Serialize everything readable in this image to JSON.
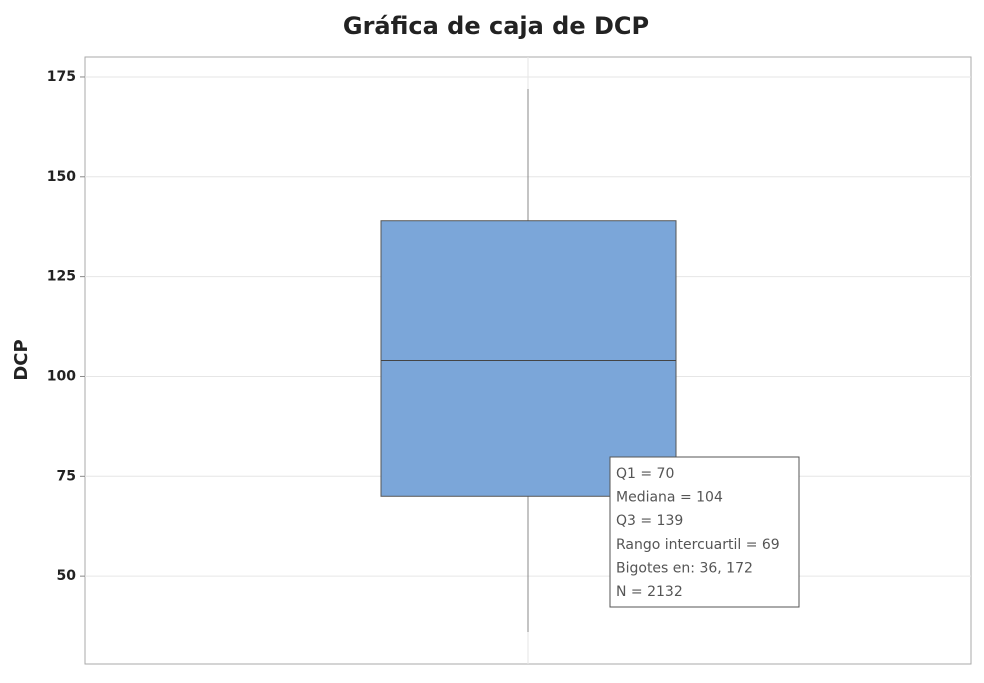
{
  "chart_data": {
    "type": "box",
    "title": "Gráfica de caja de DCP",
    "ylabel": "DCP",
    "ylim": [
      28,
      180
    ],
    "yticks": [
      50,
      75,
      100,
      125,
      150,
      175
    ],
    "grid": true,
    "color": "#7ba6d9",
    "box": {
      "whisker_low": 36,
      "q1": 70,
      "median": 104,
      "q3": 139,
      "whisker_high": 172
    },
    "tooltip": [
      "Q1 = 70",
      "Mediana = 104",
      "Q3 = 139",
      "Rango intercuartil = 69",
      "Bigotes en: 36, 172",
      "N = 2132"
    ]
  }
}
